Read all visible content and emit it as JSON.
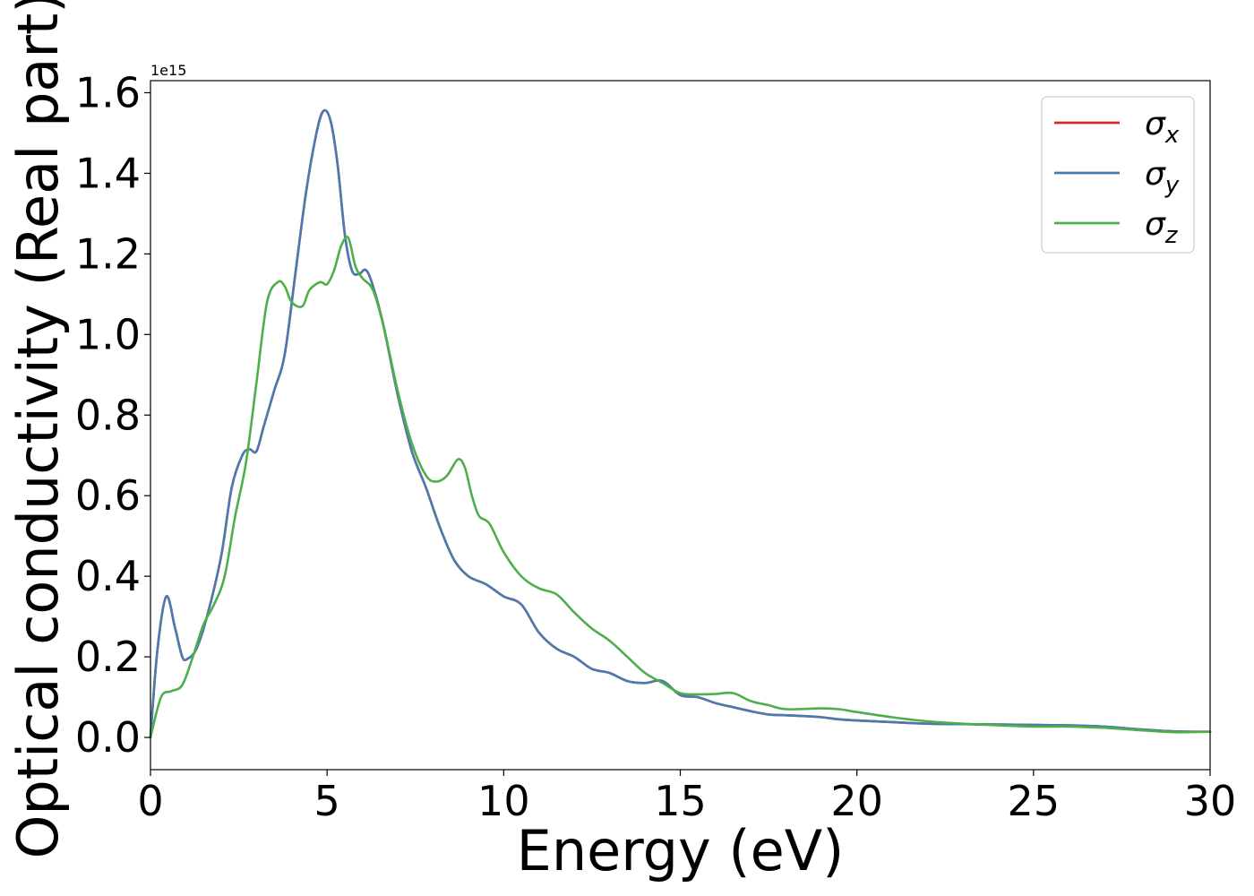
{
  "chart_data": {
    "type": "line",
    "xlabel": "Energy (eV)",
    "ylabel": "Optical conductivity (Real part)",
    "y_offset_label": "1e15",
    "xlim": [
      0,
      30
    ],
    "ylim": [
      -0.08,
      1.63
    ],
    "xticks": [
      0,
      5,
      10,
      15,
      20,
      25,
      30
    ],
    "xtick_labels": [
      "0",
      "5",
      "10",
      "15",
      "20",
      "25",
      "30"
    ],
    "yticks": [
      0.0,
      0.2,
      0.4,
      0.6,
      0.8,
      1.0,
      1.2,
      1.4,
      1.6
    ],
    "ytick_labels": [
      "0.0",
      "0.2",
      "0.4",
      "0.6",
      "0.8",
      "1.0",
      "1.2",
      "1.4",
      "1.6"
    ],
    "grid": false,
    "legend_position": "top-right",
    "series": [
      {
        "name": "σx",
        "symbol": "σ",
        "subscript": "x",
        "color": "#d62728",
        "x": [
          0,
          0.2,
          0.45,
          0.7,
          0.9,
          1.05,
          1.3,
          1.6,
          2.0,
          2.3,
          2.6,
          2.8,
          3.0,
          3.2,
          3.5,
          3.8,
          4.1,
          4.4,
          4.7,
          4.9,
          5.1,
          5.3,
          5.5,
          5.7,
          5.9,
          6.1,
          6.3,
          6.6,
          7.0,
          7.4,
          7.8,
          8.2,
          8.6,
          9.0,
          9.5,
          10.0,
          10.5,
          11.0,
          11.5,
          12.0,
          12.5,
          13.0,
          13.5,
          14.0,
          14.5,
          15.0,
          15.5,
          16.0,
          16.5,
          17.0,
          17.5,
          18.0,
          18.5,
          19.0,
          19.5,
          20.0,
          21.0,
          22.0,
          23.0,
          24.0,
          25.0,
          26.0,
          27.0,
          28.0,
          29.0,
          30.0
        ],
        "y": [
          0.0,
          0.22,
          0.35,
          0.27,
          0.2,
          0.195,
          0.22,
          0.3,
          0.45,
          0.62,
          0.7,
          0.715,
          0.71,
          0.77,
          0.86,
          0.95,
          1.15,
          1.35,
          1.5,
          1.555,
          1.53,
          1.42,
          1.25,
          1.16,
          1.15,
          1.16,
          1.12,
          1.02,
          0.85,
          0.71,
          0.62,
          0.52,
          0.44,
          0.4,
          0.38,
          0.35,
          0.33,
          0.26,
          0.22,
          0.2,
          0.17,
          0.16,
          0.14,
          0.135,
          0.14,
          0.105,
          0.1,
          0.085,
          0.075,
          0.065,
          0.057,
          0.055,
          0.053,
          0.05,
          0.045,
          0.042,
          0.038,
          0.034,
          0.033,
          0.032,
          0.031,
          0.03,
          0.027,
          0.02,
          0.015,
          0.014
        ]
      },
      {
        "name": "σy",
        "symbol": "σ",
        "subscript": "y",
        "color": "#4a7bb0",
        "x": [
          0,
          0.2,
          0.45,
          0.7,
          0.9,
          1.05,
          1.3,
          1.6,
          2.0,
          2.3,
          2.6,
          2.8,
          3.0,
          3.2,
          3.5,
          3.8,
          4.1,
          4.4,
          4.7,
          4.9,
          5.1,
          5.3,
          5.5,
          5.7,
          5.9,
          6.1,
          6.3,
          6.6,
          7.0,
          7.4,
          7.8,
          8.2,
          8.6,
          9.0,
          9.5,
          10.0,
          10.5,
          11.0,
          11.5,
          12.0,
          12.5,
          13.0,
          13.5,
          14.0,
          14.5,
          15.0,
          15.5,
          16.0,
          16.5,
          17.0,
          17.5,
          18.0,
          18.5,
          19.0,
          19.5,
          20.0,
          21.0,
          22.0,
          23.0,
          24.0,
          25.0,
          26.0,
          27.0,
          28.0,
          29.0,
          30.0
        ],
        "y": [
          0.0,
          0.22,
          0.35,
          0.27,
          0.2,
          0.195,
          0.22,
          0.3,
          0.45,
          0.62,
          0.7,
          0.715,
          0.71,
          0.77,
          0.86,
          0.95,
          1.15,
          1.35,
          1.5,
          1.555,
          1.53,
          1.42,
          1.25,
          1.16,
          1.15,
          1.16,
          1.12,
          1.02,
          0.85,
          0.71,
          0.62,
          0.52,
          0.44,
          0.4,
          0.38,
          0.35,
          0.33,
          0.26,
          0.22,
          0.2,
          0.17,
          0.16,
          0.14,
          0.135,
          0.14,
          0.105,
          0.1,
          0.085,
          0.075,
          0.065,
          0.057,
          0.055,
          0.053,
          0.05,
          0.045,
          0.042,
          0.038,
          0.034,
          0.033,
          0.032,
          0.031,
          0.03,
          0.027,
          0.02,
          0.015,
          0.014
        ]
      },
      {
        "name": "σz",
        "symbol": "σ",
        "subscript": "z",
        "color": "#4daf4a",
        "x": [
          0,
          0.3,
          0.6,
          0.9,
          1.2,
          1.5,
          1.8,
          2.1,
          2.4,
          2.7,
          3.0,
          3.3,
          3.6,
          3.8,
          4.0,
          4.3,
          4.5,
          4.8,
          5.0,
          5.2,
          5.4,
          5.6,
          5.8,
          6.0,
          6.3,
          6.6,
          7.0,
          7.4,
          7.8,
          8.1,
          8.4,
          8.7,
          8.9,
          9.1,
          9.3,
          9.6,
          10.0,
          10.5,
          11.0,
          11.5,
          12.0,
          12.5,
          13.0,
          13.5,
          14.0,
          14.5,
          15.0,
          15.5,
          16.0,
          16.5,
          17.0,
          17.5,
          18.0,
          19.0,
          19.5,
          20.0,
          21.0,
          22.0,
          23.0,
          24.0,
          25.0,
          26.0,
          27.0,
          28.0,
          29.0,
          30.0
        ],
        "y": [
          0.0,
          0.1,
          0.115,
          0.13,
          0.2,
          0.28,
          0.33,
          0.4,
          0.55,
          0.68,
          0.88,
          1.08,
          1.13,
          1.12,
          1.08,
          1.07,
          1.11,
          1.13,
          1.125,
          1.16,
          1.22,
          1.24,
          1.17,
          1.14,
          1.11,
          1.02,
          0.86,
          0.73,
          0.65,
          0.635,
          0.65,
          0.69,
          0.67,
          0.6,
          0.55,
          0.53,
          0.46,
          0.4,
          0.37,
          0.355,
          0.31,
          0.27,
          0.24,
          0.2,
          0.16,
          0.135,
          0.11,
          0.107,
          0.108,
          0.11,
          0.09,
          0.08,
          0.07,
          0.072,
          0.07,
          0.063,
          0.05,
          0.04,
          0.034,
          0.03,
          0.027,
          0.027,
          0.024,
          0.018,
          0.013,
          0.014
        ]
      }
    ]
  }
}
